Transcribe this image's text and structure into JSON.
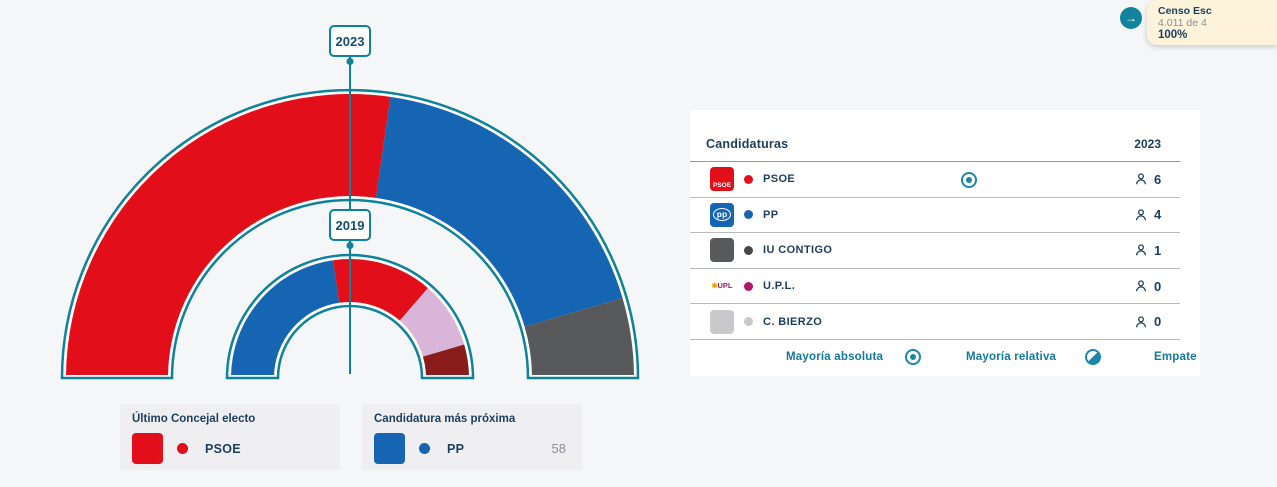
{
  "colors": {
    "accent_teal": "#0e8299",
    "navy_text": "#1d3c5e",
    "footer_teal": "#15789f",
    "psoe_red": "#e20e19",
    "pp_blue": "#1565b2",
    "iu_gray": "#58595b",
    "upl_magenta": "#b0156b",
    "bierzo_gray": "#c9c9cb",
    "lavender": "#d9b6d9",
    "maroon": "#8b1c1c",
    "background": "#f5f6f8",
    "tooltip_bg": "#fcf3da"
  },
  "tooltip": {
    "title": "Censo Esc",
    "subtitle": "4.011 de 4",
    "percent": "100%",
    "arrow_icon": "→"
  },
  "chart_data": {
    "type": "hemicycle",
    "title": "",
    "rings": [
      {
        "year": "2023",
        "total_seats": 11,
        "segments": [
          {
            "party": "PSOE",
            "seats": 6,
            "color": "#e20e19"
          },
          {
            "party": "PP",
            "seats": 4,
            "color": "#1565b2"
          },
          {
            "party": "IU CONTIGO",
            "seats": 1,
            "color": "#58595b"
          }
        ]
      },
      {
        "year": "2019",
        "total_seats": 11,
        "segments": [
          {
            "party": "PP",
            "seats": 5,
            "color": "#1565b2"
          },
          {
            "party": "PSOE",
            "seats": 3,
            "color": "#e20e19"
          },
          {
            "party": "",
            "seats": 2,
            "color": "#d9b6d9"
          },
          {
            "party": "",
            "seats": 1,
            "color": "#8b1c1c"
          }
        ]
      }
    ]
  },
  "legend_cards": [
    {
      "title": "Último Concejal electo",
      "party": "PSOE",
      "color": "#e20e19"
    },
    {
      "title": "Candidatura más próxima",
      "party": "PP",
      "color": "#1565b2",
      "value": "58"
    }
  ],
  "table": {
    "header": {
      "candidaturas": "Candidaturas",
      "year": "2023"
    },
    "rows": [
      {
        "party": "PSOE",
        "seats": "6",
        "dot_color": "#e20e19",
        "logo_style": "psoe",
        "logo_text": "PSOE",
        "majority": "absoluta"
      },
      {
        "party": "PP",
        "seats": "4",
        "dot_color": "#1565b2",
        "logo_style": "pp",
        "logo_text": "pp"
      },
      {
        "party": "IU CONTIGO",
        "seats": "1",
        "dot_color": "#474747",
        "logo_style": "solid",
        "logo_bg": "#58595b"
      },
      {
        "party": "U.P.L.",
        "seats": "0",
        "dot_color": "#b0156b",
        "logo_style": "upl",
        "logo_text": "UPL"
      },
      {
        "party": "C. BIERZO",
        "seats": "0",
        "dot_color": "#c9c9cb",
        "logo_style": "solid",
        "logo_bg": "#c9c9cb"
      }
    ],
    "footer": [
      {
        "label": "Mayoría absoluta",
        "icon": "absolute-majority-icon"
      },
      {
        "label": "Mayoría relativa",
        "icon": "relative-majority-icon"
      },
      {
        "label": "Empate"
      }
    ]
  }
}
